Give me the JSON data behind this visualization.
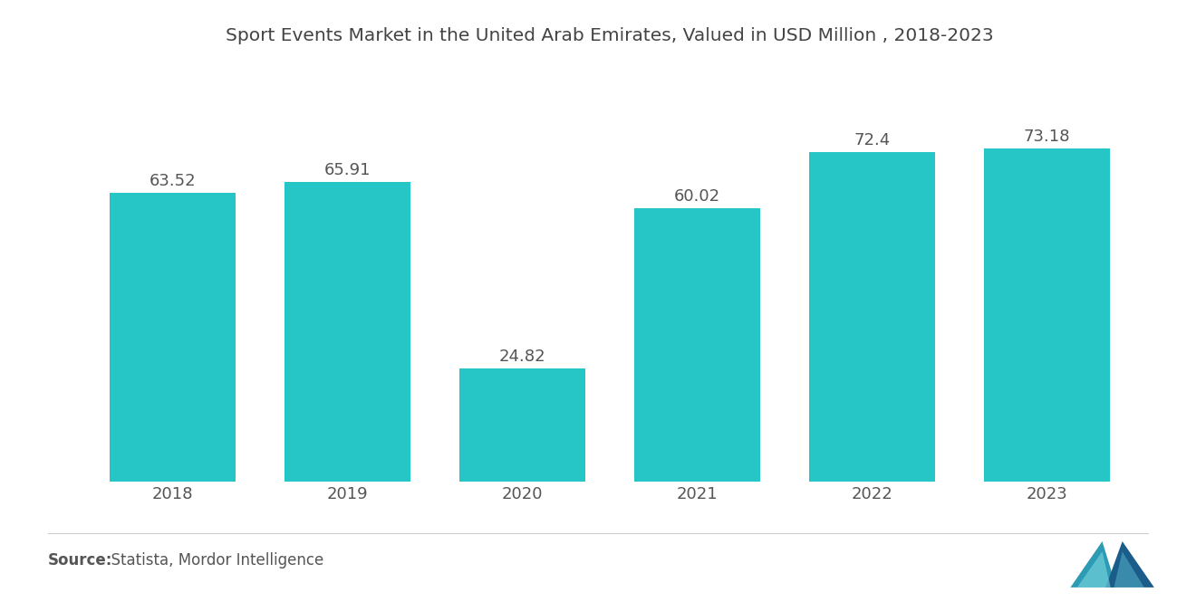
{
  "title": "Sport Events Market in the United Arab Emirates, Valued in USD Million , 2018-2023",
  "categories": [
    "2018",
    "2019",
    "2020",
    "2021",
    "2022",
    "2023"
  ],
  "values": [
    63.52,
    65.91,
    24.82,
    60.02,
    72.4,
    73.18
  ],
  "bar_color": "#26C6C6",
  "background_color": "#ffffff",
  "title_fontsize": 14.5,
  "label_fontsize": 13,
  "tick_fontsize": 13,
  "source_bold": "Source:",
  "source_normal": "  Statista, Mordor Intelligence",
  "source_fontsize": 12,
  "bar_width": 0.72,
  "ylim": [
    0,
    90
  ],
  "logo_left_color": "#2E9BB5",
  "logo_right_color": "#1A5C8A"
}
